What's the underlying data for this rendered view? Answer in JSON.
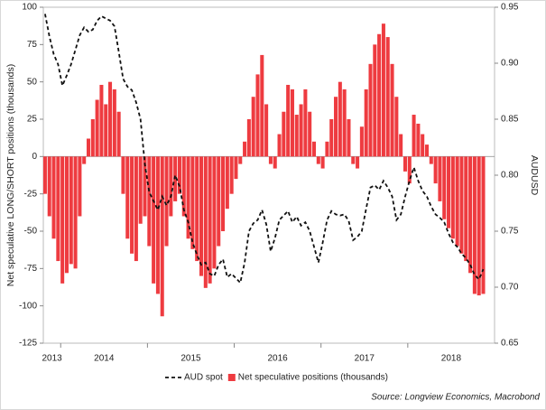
{
  "chart_data": {
    "type": "combo",
    "y_label": "Net speculative LONG/SHORT positions (thousands)",
    "y2_label": "AUDUSD",
    "source": "Source: Longview Economics, Macrobond",
    "x": [
      2013.82,
      2013.87,
      2013.92,
      2013.97,
      2014.02,
      2014.07,
      2014.12,
      2014.17,
      2014.22,
      2014.27,
      2014.32,
      2014.37,
      2014.42,
      2014.47,
      2014.52,
      2014.57,
      2014.62,
      2014.67,
      2014.72,
      2014.77,
      2014.82,
      2014.87,
      2014.92,
      2014.97,
      2015.02,
      2015.07,
      2015.12,
      2015.17,
      2015.22,
      2015.27,
      2015.32,
      2015.37,
      2015.42,
      2015.47,
      2015.52,
      2015.57,
      2015.62,
      2015.67,
      2015.72,
      2015.77,
      2015.82,
      2015.87,
      2015.92,
      2015.97,
      2016.02,
      2016.07,
      2016.12,
      2016.17,
      2016.22,
      2016.27,
      2016.32,
      2016.37,
      2016.42,
      2016.47,
      2016.52,
      2016.57,
      2016.62,
      2016.67,
      2016.72,
      2016.77,
      2016.82,
      2016.87,
      2016.92,
      2016.97,
      2017.02,
      2017.07,
      2017.12,
      2017.17,
      2017.22,
      2017.27,
      2017.32,
      2017.37,
      2017.42,
      2017.47,
      2017.52,
      2017.57,
      2017.62,
      2017.67,
      2017.72,
      2017.77,
      2017.82,
      2017.87,
      2017.92,
      2017.97,
      2018.02,
      2018.07,
      2018.12,
      2018.17,
      2018.22,
      2018.27,
      2018.32,
      2018.37,
      2018.42,
      2018.47,
      2018.52,
      2018.57,
      2018.62,
      2018.67,
      2018.72,
      2018.77,
      2018.82,
      2018.87
    ],
    "xlim": [
      2013.8,
      2019.0
    ],
    "xticks": [
      2013,
      2014,
      2015,
      2016,
      2017,
      2018
    ],
    "ylim": [
      -125,
      100
    ],
    "yticks": [
      100,
      75,
      50,
      25,
      0,
      -25,
      -50,
      -75,
      -100,
      -125
    ],
    "y2lim": [
      0.65,
      0.95
    ],
    "y2ticks": [
      0.95,
      {
        "value": 0.9,
        "label": "0.90"
      },
      0.85,
      {
        "value": 0.8,
        "label": "0.80"
      },
      0.75,
      {
        "value": 0.7,
        "label": "0.70"
      },
      0.65
    ],
    "series": [
      {
        "name": "Net speculative positions (thousands)",
        "type": "bar",
        "color": "#ee3b40",
        "values": [
          -25,
          -40,
          -55,
          -70,
          -85,
          -78,
          -72,
          -75,
          -40,
          -5,
          12,
          25,
          38,
          48,
          35,
          50,
          45,
          30,
          -25,
          -55,
          -65,
          -70,
          -45,
          -40,
          -60,
          -85,
          -92,
          -107,
          -60,
          -40,
          -30,
          -25,
          -40,
          -55,
          -62,
          -70,
          -80,
          -88,
          -85,
          -75,
          -60,
          -50,
          -35,
          -25,
          -15,
          -5,
          10,
          25,
          40,
          55,
          68,
          35,
          -5,
          -8,
          15,
          30,
          48,
          45,
          28,
          35,
          45,
          30,
          10,
          -5,
          -8,
          10,
          25,
          40,
          50,
          45,
          25,
          -5,
          -8,
          20,
          45,
          62,
          75,
          82,
          89,
          80,
          62,
          40,
          15,
          -10,
          -18,
          28,
          22,
          15,
          8,
          -5,
          -18,
          -30,
          -42,
          -48,
          -55,
          -60,
          -65,
          -70,
          -78,
          -92,
          -93,
          -92
        ]
      },
      {
        "name": "AUD spot",
        "type": "line",
        "axis": "y2",
        "color": "#111111",
        "values": [
          0.944,
          0.924,
          0.908,
          0.899,
          0.88,
          0.889,
          0.899,
          0.912,
          0.925,
          0.932,
          0.928,
          0.93,
          0.938,
          0.942,
          0.94,
          0.938,
          0.933,
          0.91,
          0.886,
          0.879,
          0.876,
          0.865,
          0.85,
          0.81,
          0.785,
          0.777,
          0.769,
          0.781,
          0.773,
          0.781,
          0.8,
          0.79,
          0.769,
          0.758,
          0.74,
          0.729,
          0.72,
          0.722,
          0.712,
          0.71,
          0.72,
          0.725,
          0.709,
          0.712,
          0.708,
          0.704,
          0.722,
          0.75,
          0.757,
          0.76,
          0.769,
          0.756,
          0.732,
          0.744,
          0.76,
          0.764,
          0.768,
          0.758,
          0.763,
          0.755,
          0.758,
          0.75,
          0.736,
          0.722,
          0.74,
          0.76,
          0.768,
          0.765,
          0.764,
          0.765,
          0.759,
          0.742,
          0.745,
          0.75,
          0.77,
          0.789,
          0.791,
          0.787,
          0.795,
          0.789,
          0.781,
          0.76,
          0.765,
          0.781,
          0.795,
          0.807,
          0.795,
          0.786,
          0.781,
          0.772,
          0.765,
          0.762,
          0.758,
          0.748,
          0.74,
          0.736,
          0.73,
          0.726,
          0.72,
          0.711,
          0.707,
          0.716
        ]
      }
    ]
  }
}
